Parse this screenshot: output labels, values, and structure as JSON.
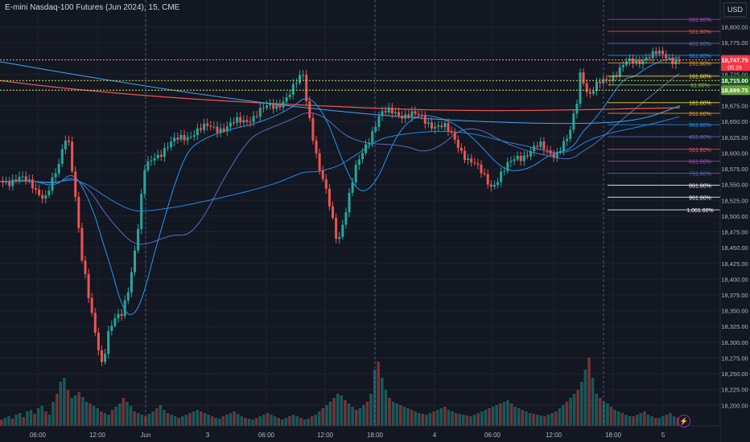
{
  "header": {
    "title": "E-mini Nasdaq-100 Futures (Jun 2024), 15, CME",
    "currency": "USD"
  },
  "colors": {
    "background": "#131722",
    "up": "#26a69a",
    "down": "#ef5350",
    "grid": "#1e222d"
  },
  "price_axis": {
    "ticks": [
      "18,800.00",
      "18,775.00",
      "18,725.00",
      "18,700.00",
      "18,675.00",
      "18,650.00",
      "18,625.00",
      "18,600.00",
      "18,575.00",
      "18,550.00",
      "18,525.00",
      "18,500.00",
      "18,475.00",
      "18,450.00",
      "18,425.00",
      "18,400.00",
      "18,375.00",
      "18,350.00",
      "18,325.00",
      "18,300.00",
      "18,275.00",
      "18,250.00",
      "18,225.00",
      "18,200.00"
    ],
    "tick_values": [
      18800,
      18775,
      18725,
      18700,
      18675,
      18650,
      18625,
      18600,
      18575,
      18550,
      18525,
      18500,
      18475,
      18450,
      18425,
      18400,
      18375,
      18350,
      18325,
      18300,
      18275,
      18250,
      18225,
      18200
    ],
    "last_price": "18,747.75",
    "countdown": "05:16",
    "level_a": "18,715.00",
    "level_b": "18,699.75"
  },
  "time_axis": [
    "06:00",
    "12:00",
    "Jun",
    "3",
    "06:00",
    "12:00",
    "18:00",
    "4",
    "06:00",
    "12:00",
    "18:00",
    "5"
  ],
  "fib_labels": [
    {
      "text": "661.80%",
      "price": 18812,
      "color": "#ab47bc",
      "x1": 755
    },
    {
      "text": "561.80%",
      "price": 18793,
      "color": "#ef5350",
      "x1": 755
    },
    {
      "text": "461.80%",
      "price": 18774,
      "color": "#5c6bc0",
      "x1": 755
    },
    {
      "text": "361.80%",
      "price": 18755,
      "color": "#2196f3",
      "x1": 755
    },
    {
      "text": "261.80%",
      "price": 18743,
      "color": "#f5a623",
      "x1": 755
    },
    {
      "text": "161.80%",
      "price": 18722,
      "color": "#ffeb3b",
      "x1": 755
    },
    {
      "text": "61.80%",
      "price": 18708,
      "color": "#8bc34a",
      "x1": 755
    },
    {
      "text": "161.80%",
      "price": 18680,
      "color": "#ffeb3b",
      "x1": 755
    },
    {
      "text": "261.80%",
      "price": 18663,
      "color": "#f5a623",
      "x1": 755
    },
    {
      "text": "361.80%",
      "price": 18645,
      "color": "#2196f3",
      "x1": 755
    },
    {
      "text": "461.80%",
      "price": 18626,
      "color": "#5c6bc0",
      "x1": 755
    },
    {
      "text": "561.80%",
      "price": 18606,
      "color": "#ef5350",
      "x1": 755
    },
    {
      "text": "661.80%",
      "price": 18587,
      "color": "#ab47bc",
      "x1": 755
    },
    {
      "text": "761.80%",
      "price": 18568,
      "color": "#5c6bc0",
      "x1": 755
    },
    {
      "text": "861.80%",
      "price": 18549,
      "color": "#ffffff",
      "x1": 755
    },
    {
      "text": "961.80%",
      "price": 18530,
      "color": "#ffffff",
      "x1": 755
    },
    {
      "text": "1,061.80%",
      "price": 18510,
      "color": "#ffffff",
      "x1": 755
    }
  ],
  "chart_data": {
    "type": "candlestick",
    "title": "E-mini Nasdaq-100 Futures (Jun 2024), 15, CME",
    "ylim": [
      18180,
      18830
    ],
    "y_unit": "USD",
    "last_price": 18747.75,
    "horizontal_levels": [
      18747.75,
      18715,
      18699.75
    ],
    "price_path": [
      [
        0,
        18555
      ],
      [
        20,
        18560
      ],
      [
        40,
        18548
      ],
      [
        55,
        18530
      ],
      [
        70,
        18570
      ],
      [
        82,
        18640
      ],
      [
        90,
        18560
      ],
      [
        100,
        18430
      ],
      [
        110,
        18360
      ],
      [
        120,
        18300
      ],
      [
        126,
        18265
      ],
      [
        132,
        18310
      ],
      [
        140,
        18330
      ],
      [
        150,
        18345
      ],
      [
        160,
        18400
      ],
      [
        170,
        18480
      ],
      [
        178,
        18570
      ],
      [
        190,
        18595
      ],
      [
        205,
        18610
      ],
      [
        220,
        18620
      ],
      [
        240,
        18635
      ],
      [
        260,
        18640
      ],
      [
        280,
        18642
      ],
      [
        300,
        18650
      ],
      [
        320,
        18665
      ],
      [
        340,
        18675
      ],
      [
        360,
        18695
      ],
      [
        375,
        18725
      ],
      [
        380,
        18680
      ],
      [
        386,
        18640
      ],
      [
        394,
        18580
      ],
      [
        405,
        18530
      ],
      [
        418,
        18460
      ],
      [
        430,
        18520
      ],
      [
        440,
        18570
      ],
      [
        455,
        18620
      ],
      [
        470,
        18660
      ],
      [
        490,
        18665
      ],
      [
        510,
        18660
      ],
      [
        530,
        18650
      ],
      [
        550,
        18640
      ],
      [
        565,
        18620
      ],
      [
        580,
        18590
      ],
      [
        595,
        18570
      ],
      [
        610,
        18550
      ],
      [
        625,
        18570
      ],
      [
        640,
        18595
      ],
      [
        655,
        18600
      ],
      [
        670,
        18610
      ],
      [
        690,
        18600
      ],
      [
        705,
        18620
      ],
      [
        715,
        18680
      ],
      [
        720,
        18735
      ],
      [
        730,
        18690
      ],
      [
        745,
        18710
      ],
      [
        760,
        18725
      ],
      [
        775,
        18740
      ],
      [
        790,
        18745
      ],
      [
        800,
        18755
      ],
      [
        815,
        18755
      ],
      [
        830,
        18752
      ],
      [
        845,
        18748
      ]
    ],
    "volume_heights": [
      8,
      10,
      12,
      9,
      14,
      16,
      11,
      18,
      20,
      15,
      22,
      25,
      18,
      14,
      30,
      40,
      55,
      60,
      45,
      35,
      38,
      42,
      36,
      30,
      28,
      25,
      22,
      18,
      16,
      14,
      20,
      24,
      28,
      35,
      30,
      25,
      18,
      16,
      14,
      12,
      15,
      18,
      22,
      26,
      20,
      16,
      14,
      12,
      10,
      12,
      14,
      16,
      18,
      20,
      18,
      16,
      14,
      12,
      10,
      9,
      12,
      14,
      16,
      18,
      15,
      12,
      10,
      9,
      8,
      10,
      12,
      14,
      16,
      14,
      12,
      10,
      8,
      10,
      12,
      14,
      12,
      10,
      8,
      9,
      12,
      14,
      18,
      22,
      26,
      30,
      35,
      40,
      38,
      32,
      28,
      24,
      20,
      22,
      26,
      30,
      40,
      70,
      80,
      60,
      45,
      35,
      30,
      28,
      26,
      24,
      22,
      20,
      18,
      16,
      15,
      14,
      16,
      18,
      20,
      22,
      24,
      20,
      18,
      16,
      15,
      14,
      13,
      12,
      14,
      16,
      18,
      20,
      22,
      24,
      26,
      28,
      30,
      32,
      28,
      24,
      22,
      20,
      18,
      16,
      15,
      14,
      13,
      12,
      14,
      16,
      18,
      22,
      26,
      30,
      35,
      40,
      45,
      55,
      70,
      85,
      60,
      40,
      35,
      30,
      28,
      24,
      20,
      18,
      16,
      14,
      12,
      12,
      14,
      16,
      18,
      14,
      12,
      10,
      10,
      12,
      14,
      16,
      12,
      10
    ]
  }
}
